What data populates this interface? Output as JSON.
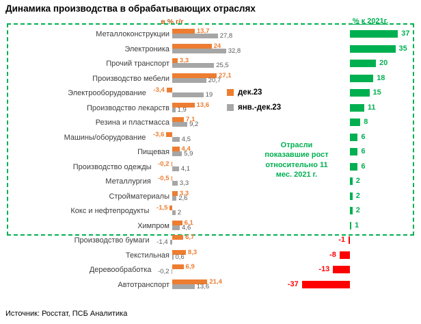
{
  "title": "Динамика производства в обрабатывающих отраслях",
  "axis_label": "в % г/г",
  "right_header": "% к 2021г.",
  "legend": [
    {
      "label": "дек.23",
      "color": "#ED7D31"
    },
    {
      "label": "янв.-дек.23",
      "color": "#A6A6A6"
    }
  ],
  "annotation": "Отрасли показавшие рост относительно 11 мес. 2021 г.",
  "source": "Источник: Росстат, ПСБ Аналитика",
  "colors": {
    "orange": "#ED7D31",
    "gray": "#A6A6A6",
    "green": "#00B050",
    "red": "#FF0000"
  },
  "chart_data": {
    "type": "bar",
    "orientation": "horizontal",
    "unit": "% г/г",
    "title": "Динамика производства в обрабатывающих отраслях",
    "series_names": [
      "дек.23",
      "янв.-дек.23",
      "% к 2021г."
    ],
    "rows": [
      {
        "label": "Металлоконструкции",
        "dec23": 13.7,
        "jan_dec23": 27.8,
        "vs2021": 37
      },
      {
        "label": "Электроника",
        "dec23": 24,
        "jan_dec23": 32.8,
        "vs2021": 35
      },
      {
        "label": "Прочий транспорт",
        "dec23": 3.3,
        "jan_dec23": 25.5,
        "vs2021": 20
      },
      {
        "label": "Производство мебели",
        "dec23": 27.1,
        "jan_dec23": 20.7,
        "vs2021": 18
      },
      {
        "label": "Электрооборудование",
        "dec23": -3.4,
        "jan_dec23": 19,
        "vs2021": 15
      },
      {
        "label": "Производство лекарств",
        "dec23": 13.6,
        "jan_dec23": 1.9,
        "vs2021": 11
      },
      {
        "label": "Резина и пластмасса",
        "dec23": 7.1,
        "jan_dec23": 9.2,
        "vs2021": 8
      },
      {
        "label": "Машины/оборудование",
        "dec23": -3.6,
        "jan_dec23": 4.5,
        "vs2021": 6
      },
      {
        "label": "Пищевая",
        "dec23": 4.4,
        "jan_dec23": 5.9,
        "vs2021": 6
      },
      {
        "label": "Производство одежды",
        "dec23": -0.2,
        "jan_dec23": 4.1,
        "vs2021": 6
      },
      {
        "label": "Металлургия",
        "dec23": -0.5,
        "jan_dec23": 3.3,
        "vs2021": 2
      },
      {
        "label": "Стройматериалы",
        "dec23": 3.3,
        "jan_dec23": 2.6,
        "vs2021": 2
      },
      {
        "label": "Кокс и нефтепродукты",
        "dec23": -1.5,
        "jan_dec23": 2,
        "vs2021": 2
      },
      {
        "label": "Химпром",
        "dec23": 6.1,
        "jan_dec23": 4.6,
        "vs2021": 1
      },
      {
        "label": "Производство бумаги",
        "dec23": 6.7,
        "jan_dec23": -1.4,
        "vs2021": -1
      },
      {
        "label": "Текстильная",
        "dec23": 8.3,
        "jan_dec23": 0.6,
        "vs2021": -8
      },
      {
        "label": "Деревообработка",
        "dec23": 6.9,
        "jan_dec23": -0.2,
        "vs2021": -13
      },
      {
        "label": "Автотранспорт",
        "dec23": 21.4,
        "jan_dec23": 13.6,
        "vs2021": -37
      }
    ]
  }
}
